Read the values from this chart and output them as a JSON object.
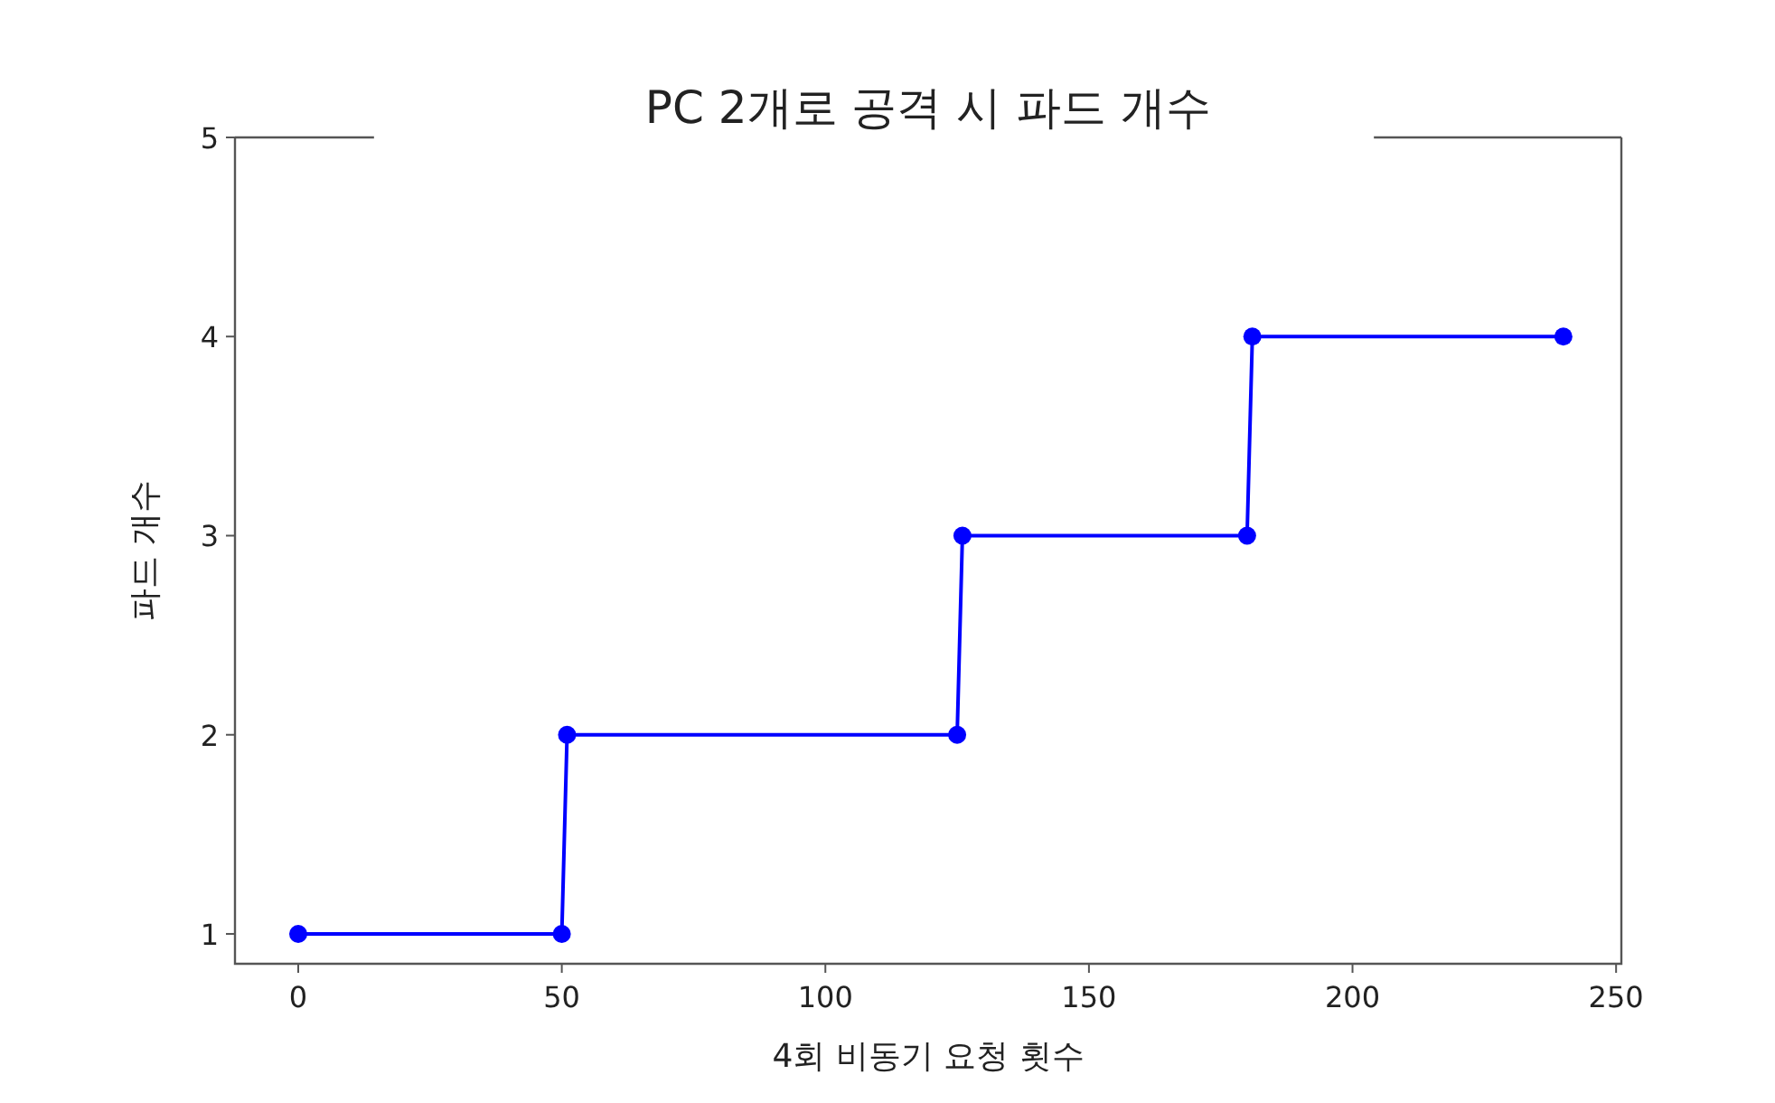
{
  "chart_data": {
    "type": "line",
    "title": "PC 2개로 공격 시 파드 개수",
    "xlabel": "4회 비동기 요청 횟수",
    "ylabel": "파드 개수",
    "x": [
      0,
      50,
      51,
      125,
      126,
      180,
      181,
      240
    ],
    "series": [
      {
        "color": "#0000ff",
        "values": [
          1,
          1,
          2,
          2,
          3,
          3,
          4,
          4
        ]
      }
    ],
    "xlim": [
      -12,
      251
    ],
    "ylim": [
      0.85,
      5
    ],
    "xticks": [
      0,
      50,
      100,
      150,
      200,
      250
    ],
    "yticks": [
      1,
      2,
      3,
      4,
      5
    ],
    "marker": "circle",
    "line_style": "solid",
    "grid": false
  }
}
